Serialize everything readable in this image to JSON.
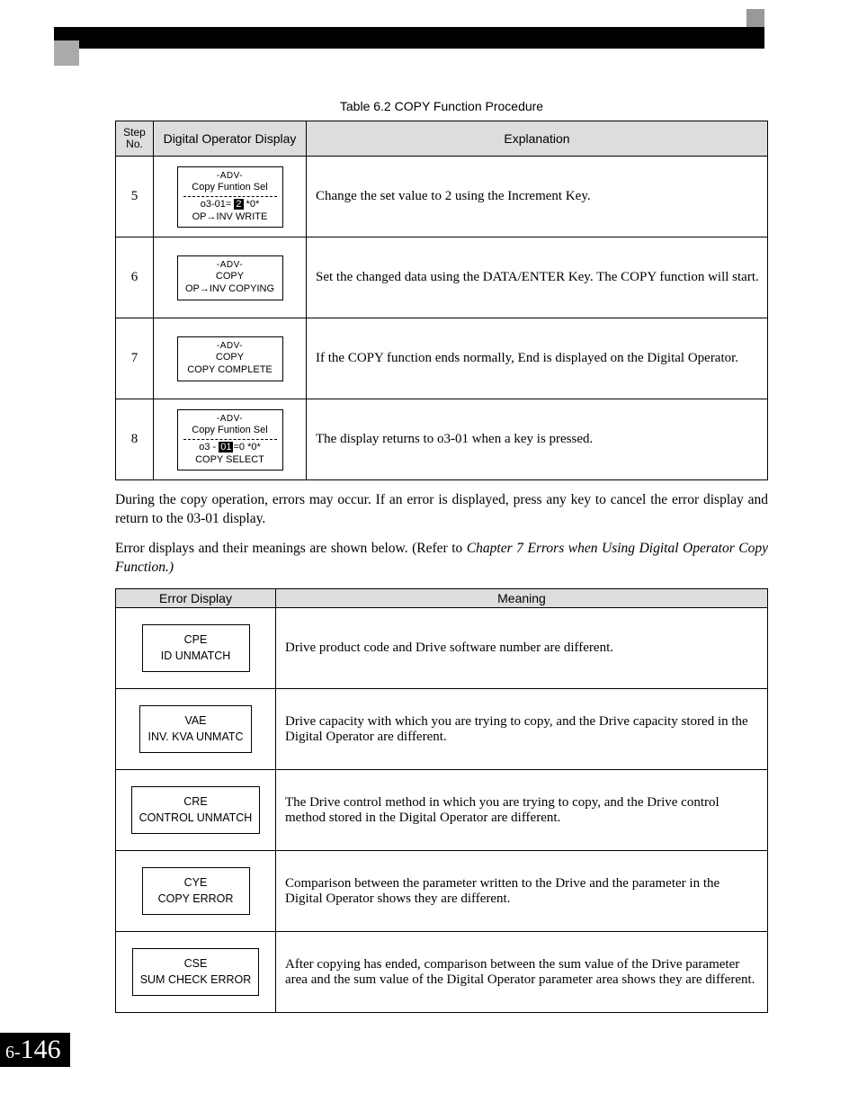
{
  "caption": "Table 6.2  COPY Function Procedure",
  "table1": {
    "headers": {
      "step": "Step\nNo.",
      "display": "Digital Operator Display",
      "explanation": "Explanation"
    },
    "rows": [
      {
        "step": "5",
        "box": {
          "adv": "-ADV-",
          "line1": "Copy Funtion Sel",
          "dashed_after_line1": true,
          "line2_pre": "o3-01= ",
          "line2_hl": "2",
          "line2_post": "  *0*",
          "line3": "OP→INV WRITE"
        },
        "explanation": "Change the set value to 2 using the Increment Key."
      },
      {
        "step": "6",
        "box": {
          "adv": "-ADV-",
          "line1": "COPY",
          "line3": "OP→INV COPYING"
        },
        "explanation": "Set the changed data using the DATA/ENTER Key. The COPY function will start."
      },
      {
        "step": "7",
        "box": {
          "adv": "-ADV-",
          "line1": "COPY",
          "line3": "COPY COMPLETE"
        },
        "explanation": "If the COPY function ends normally, End is displayed on the Digital Operator."
      },
      {
        "step": "8",
        "box": {
          "adv": "-ADV-",
          "line1": "Copy Funtion Sel",
          "dashed_after_line1": true,
          "line2_pre": "o3 - ",
          "line2_hl": "01",
          "line2_post": "=0  *0*",
          "line3": "COPY SELECT"
        },
        "explanation": "The display returns to o3-01 when a key is pressed."
      }
    ]
  },
  "para1": "During the copy operation, errors may occur. If an error is displayed, press any key to cancel the error display and return to the 03-01 display.",
  "para2_pre": "Error displays and their meanings are shown below. (Refer to ",
  "para2_ital": "Chapter 7  Errors when Using Digital Operator Copy Function.)",
  "table2": {
    "headers": {
      "display": "Error Display",
      "meaning": "Meaning"
    },
    "rows": [
      {
        "code": "CPE",
        "label": "ID UNMATCH",
        "meaning": "Drive product code and Drive software number are different."
      },
      {
        "code": "VAE",
        "label": "INV. KVA UNMATC",
        "meaning": "Drive capacity with which you are trying to copy, and the Drive capacity stored in the Digital Operator are different."
      },
      {
        "code": "CRE",
        "label": "CONTROL UNMATCH",
        "meaning": "The Drive control method in which you are trying to copy, and the Drive control method stored in the Digital Operator are different."
      },
      {
        "code": "CYE",
        "label": "COPY ERROR",
        "meaning": "Comparison between the parameter written to the Drive and the parameter in the Digital Operator shows they are different."
      },
      {
        "code": "CSE",
        "label": "SUM CHECK  ERROR",
        "meaning": "After copying has ended, comparison between the sum value of the Drive parameter area and the sum value of the Digital Operator parameter area shows they are different."
      }
    ]
  },
  "page_number": {
    "prefix": "6-",
    "num": "146"
  }
}
